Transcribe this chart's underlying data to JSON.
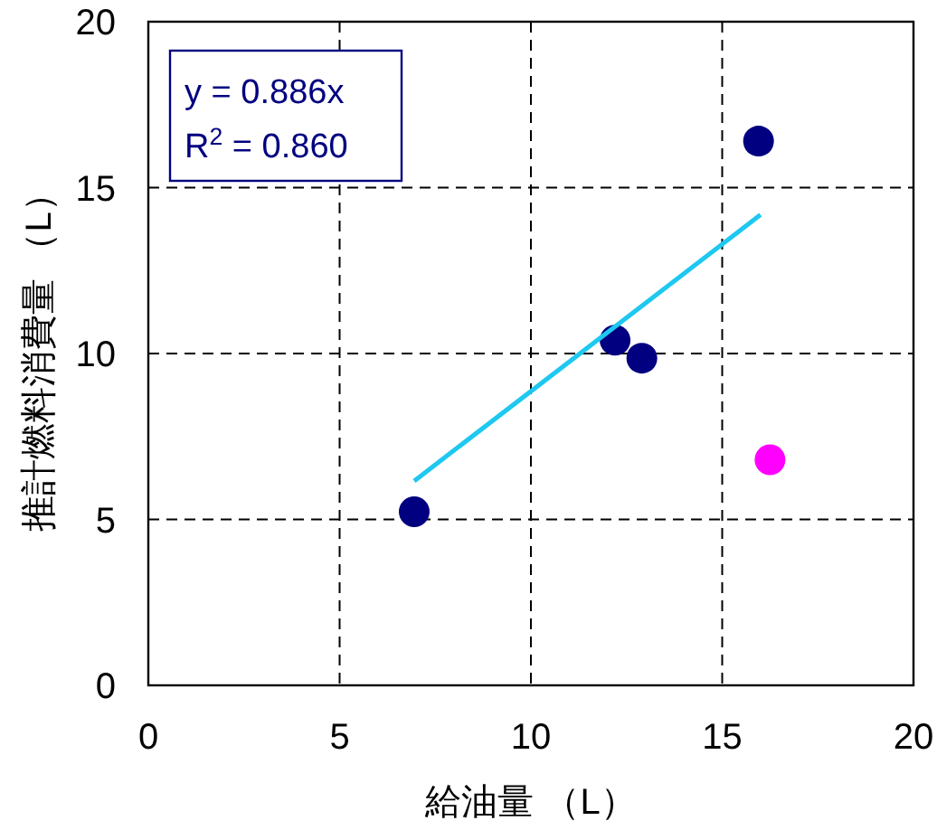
{
  "chart_data": {
    "type": "scatter",
    "xlabel": "給油量 （L）",
    "ylabel": "推計燃料消費量 （L）",
    "annotations": [
      "y = 0.886x",
      "R$^{2}$ = 0.860"
    ],
    "series": [
      {
        "type": "scatter",
        "color": "#000080",
        "marker": "circle",
        "x": [
          6.95,
          12.2,
          12.9,
          15.95
        ],
        "values": [
          5.23,
          10.4,
          9.86,
          16.4
        ]
      },
      {
        "type": "scatter",
        "color": "#ff00ff",
        "marker": "circle",
        "x": [
          16.25
        ],
        "values": [
          6.8
        ]
      },
      {
        "type": "line",
        "color": "#1ec8f0",
        "marker": "none",
        "x": [
          6.95,
          16.0
        ],
        "values": [
          6.16,
          14.18
        ]
      }
    ],
    "xlim": [
      0,
      20
    ],
    "ylim": [
      0,
      20
    ],
    "xticks": [
      0,
      5,
      10,
      15,
      20
    ],
    "yticks": [
      0,
      5,
      10,
      15,
      20
    ],
    "grid": true
  }
}
